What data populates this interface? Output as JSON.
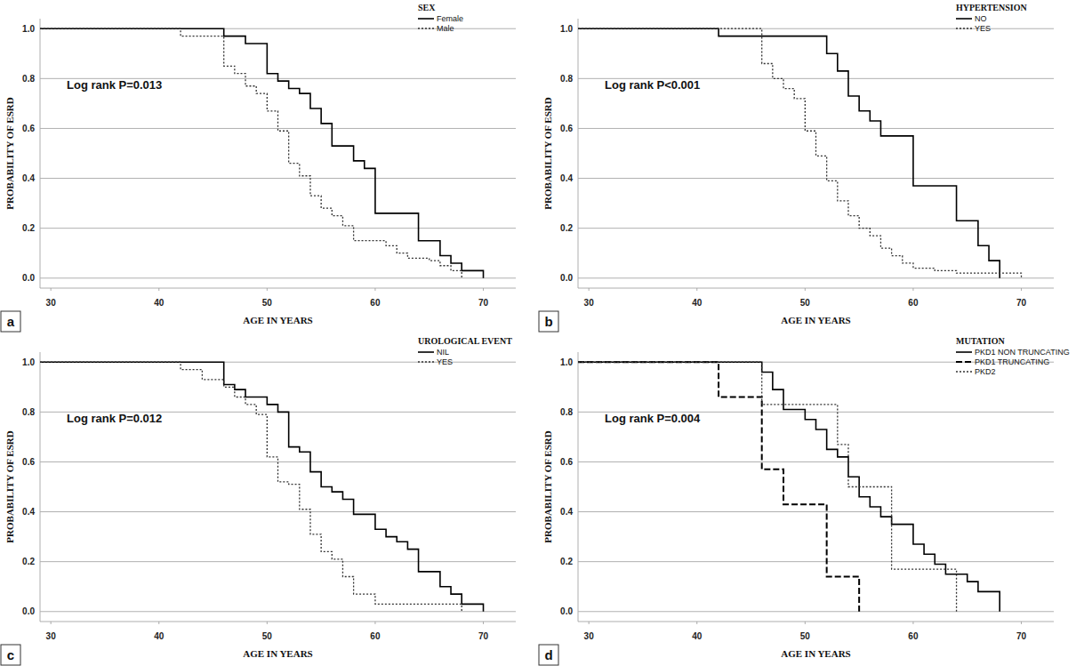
{
  "chart_data": [
    {
      "type": "line",
      "panel_label": "a",
      "annotation": "Log rank P=0.013",
      "legend_title": "SEX",
      "x_label": "AGE IN YEARS",
      "y_label": "PROBABILITY OF ESRD",
      "xlim": [
        29,
        73
      ],
      "ylim": [
        -0.04,
        1.04
      ],
      "xticks": [
        30,
        40,
        50,
        60,
        70
      ],
      "yticks": [
        {
          "value": 0,
          "label": "0.0"
        },
        {
          "value": 0.2,
          "label": "0.2"
        },
        {
          "value": 0.4,
          "label": "0.4"
        },
        {
          "value": 0.6,
          "label": "0.6"
        },
        {
          "value": 0.8,
          "label": "0.8"
        },
        {
          "value": 1,
          "label": "1.0"
        }
      ],
      "grid": "y",
      "legend": "top-right",
      "series": [
        {
          "name": "Female",
          "color": "#000000",
          "line_style": "solid",
          "x": [
            29,
            46,
            48,
            50,
            51,
            52,
            53,
            54,
            55,
            56,
            58,
            59,
            60,
            64,
            66,
            67,
            68,
            70
          ],
          "values": [
            1,
            0.97,
            0.94,
            0.82,
            0.79,
            0.76,
            0.74,
            0.68,
            0.62,
            0.53,
            0.47,
            0.44,
            0.26,
            0.15,
            0.09,
            0.06,
            0.03,
            0
          ]
        },
        {
          "name": "Male",
          "color": "#333333",
          "line_style": "dotted",
          "x": [
            29,
            42,
            46,
            47,
            48,
            49,
            50,
            51,
            52,
            53,
            54,
            55,
            56,
            57,
            58,
            61,
            62,
            63,
            65,
            66,
            67,
            68
          ],
          "values": [
            1,
            0.97,
            0.85,
            0.82,
            0.77,
            0.74,
            0.67,
            0.59,
            0.46,
            0.41,
            0.33,
            0.28,
            0.25,
            0.21,
            0.15,
            0.13,
            0.1,
            0.08,
            0.07,
            0.05,
            0.03,
            0
          ]
        }
      ]
    },
    {
      "type": "line",
      "panel_label": "b",
      "annotation": "Log rank P<0.001",
      "legend_title": "HYPERTENSION",
      "x_label": "AGE IN YEARS",
      "y_label": "PROBABILITY OF ESRD",
      "xlim": [
        29,
        73
      ],
      "ylim": [
        -0.04,
        1.04
      ],
      "xticks": [
        30,
        40,
        50,
        60,
        70
      ],
      "yticks": [
        {
          "value": 0,
          "label": "0.0"
        },
        {
          "value": 0.2,
          "label": "0.2"
        },
        {
          "value": 0.4,
          "label": "0.4"
        },
        {
          "value": 0.6,
          "label": "0.6"
        },
        {
          "value": 0.8,
          "label": "0.8"
        },
        {
          "value": 1,
          "label": "1.0"
        }
      ],
      "grid": "y",
      "legend": "top-right",
      "series": [
        {
          "name": "NO",
          "color": "#000000",
          "line_style": "solid",
          "x": [
            29,
            42,
            52,
            53,
            54,
            55,
            56,
            57,
            60,
            64,
            66,
            67,
            68
          ],
          "values": [
            1,
            0.97,
            0.9,
            0.83,
            0.73,
            0.67,
            0.63,
            0.57,
            0.37,
            0.23,
            0.13,
            0.07,
            0
          ]
        },
        {
          "name": "YES",
          "color": "#333333",
          "line_style": "dotted",
          "x": [
            29,
            46,
            47,
            48,
            49,
            50,
            51,
            52,
            53,
            54,
            55,
            56,
            57,
            58,
            59,
            60,
            62,
            64,
            70
          ],
          "values": [
            1,
            0.86,
            0.8,
            0.76,
            0.72,
            0.59,
            0.49,
            0.39,
            0.31,
            0.25,
            0.2,
            0.17,
            0.12,
            0.09,
            0.06,
            0.04,
            0.03,
            0.02,
            0
          ]
        }
      ]
    },
    {
      "type": "line",
      "panel_label": "c",
      "annotation": "Log rank P=0.012",
      "legend_title": "UROLOGICAL EVENT",
      "x_label": "AGE IN YEARS",
      "y_label": "PROBABILITY OF ESRD",
      "xlim": [
        29,
        73
      ],
      "ylim": [
        -0.04,
        1.04
      ],
      "xticks": [
        30,
        40,
        50,
        60,
        70
      ],
      "yticks": [
        {
          "value": 0,
          "label": "0.0"
        },
        {
          "value": 0.2,
          "label": "0.2"
        },
        {
          "value": 0.4,
          "label": "0.4"
        },
        {
          "value": 0.6,
          "label": "0.6"
        },
        {
          "value": 0.8,
          "label": "0.8"
        },
        {
          "value": 1,
          "label": "1.0"
        }
      ],
      "grid": "y",
      "legend": "top-right",
      "series": [
        {
          "name": "NIL",
          "color": "#000000",
          "line_style": "solid",
          "x": [
            29,
            46,
            47,
            48,
            50,
            51,
            52,
            53,
            54,
            55,
            56,
            57,
            58,
            60,
            61,
            62,
            63,
            64,
            66,
            67,
            68,
            70
          ],
          "values": [
            1,
            0.91,
            0.89,
            0.86,
            0.83,
            0.8,
            0.66,
            0.64,
            0.56,
            0.5,
            0.48,
            0.45,
            0.39,
            0.33,
            0.3,
            0.28,
            0.25,
            0.16,
            0.1,
            0.07,
            0.03,
            0
          ]
        },
        {
          "name": "YES",
          "color": "#333333",
          "line_style": "dotted",
          "x": [
            29,
            42,
            44,
            46,
            47,
            48,
            49,
            50,
            51,
            52,
            53,
            54,
            55,
            56,
            57,
            58,
            60,
            68
          ],
          "values": [
            1,
            0.97,
            0.93,
            0.9,
            0.86,
            0.83,
            0.79,
            0.62,
            0.52,
            0.51,
            0.41,
            0.31,
            0.24,
            0.21,
            0.14,
            0.07,
            0.03,
            0
          ]
        }
      ]
    },
    {
      "type": "line",
      "panel_label": "d",
      "annotation": "Log rank P=0.004",
      "legend_title": "MUTATION",
      "x_label": "AGE IN YEARS",
      "y_label": "PROBABILITY OF ESRD",
      "xlim": [
        29,
        73
      ],
      "ylim": [
        -0.04,
        1.04
      ],
      "xticks": [
        30,
        40,
        50,
        60,
        70
      ],
      "yticks": [
        {
          "value": 0,
          "label": "0.0"
        },
        {
          "value": 0.2,
          "label": "0.2"
        },
        {
          "value": 0.4,
          "label": "0.4"
        },
        {
          "value": 0.6,
          "label": "0.6"
        },
        {
          "value": 0.8,
          "label": "0.8"
        },
        {
          "value": 1,
          "label": "1.0"
        }
      ],
      "grid": "y",
      "legend": "top-right",
      "series": [
        {
          "name": "PKD1 NON TRUNCATING",
          "color": "#000000",
          "line_style": "solid",
          "x": [
            29,
            46,
            47,
            48,
            50,
            51,
            52,
            53,
            54,
            55,
            56,
            57,
            58,
            60,
            61,
            62,
            63,
            65,
            66,
            68
          ],
          "values": [
            1,
            0.96,
            0.89,
            0.81,
            0.77,
            0.73,
            0.65,
            0.62,
            0.54,
            0.46,
            0.42,
            0.38,
            0.35,
            0.27,
            0.23,
            0.19,
            0.15,
            0.12,
            0.08,
            0
          ]
        },
        {
          "name": "PKD1 TRUNCATING",
          "color": "#000000",
          "line_style": "dashed",
          "x": [
            29,
            42,
            46,
            48,
            52,
            55
          ],
          "values": [
            1,
            0.86,
            0.57,
            0.43,
            0.14,
            0
          ]
        },
        {
          "name": "PKD2",
          "color": "#333333",
          "line_style": "dotted",
          "x": [
            29,
            46,
            53,
            54,
            58,
            64
          ],
          "values": [
            1,
            0.83,
            0.67,
            0.5,
            0.17,
            0
          ]
        }
      ]
    }
  ]
}
